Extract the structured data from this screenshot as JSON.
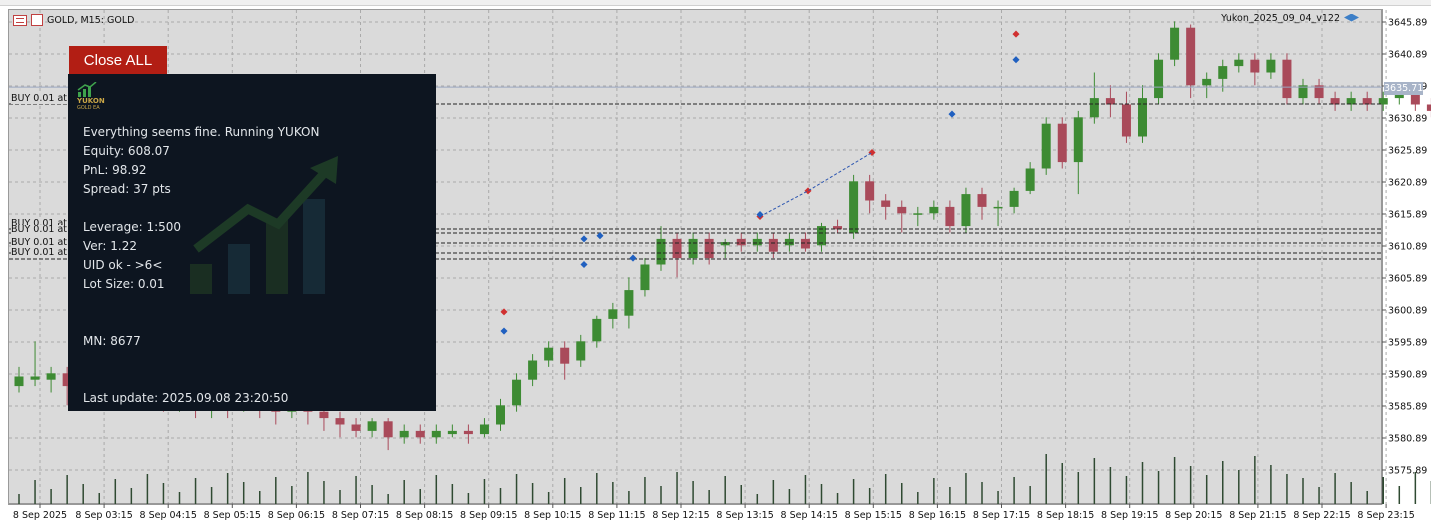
{
  "chart": {
    "symbol_title": "GOLD, M15:  GOLD",
    "ea_name": "Yukon_2025_09_04_v122",
    "current_price_tag": "3635.71",
    "y_axis_ticks": [
      "3645.89",
      "3640.89",
      "3635.89",
      "3630.89",
      "3625.89",
      "3620.89",
      "3615.89",
      "3610.89",
      "3605.89",
      "3600.89",
      "3595.89",
      "3590.89",
      "3585.89",
      "3580.89",
      "3575.89"
    ],
    "x_axis_ticks": [
      "8 Sep 2025",
      "8 Sep 03:15",
      "8 Sep 04:15",
      "8 Sep 05:15",
      "8 Sep 06:15",
      "8 Sep 07:15",
      "8 Sep 08:15",
      "8 Sep 09:15",
      "8 Sep 10:15",
      "8 Sep 11:15",
      "8 Sep 12:15",
      "8 Sep 13:15",
      "8 Sep 14:15",
      "8 Sep 15:15",
      "8 Sep 16:15",
      "8 Sep 17:15",
      "8 Sep 18:15",
      "8 Sep 19:15",
      "8 Sep 20:15",
      "8 Sep 21:15",
      "8 Sep 22:15",
      "8 Sep 23:15"
    ],
    "position_labels": [
      "BUY 0.01 at 3",
      "BUY 0.01 at 3",
      "BUY 0.01 at 3",
      "BUY 0.01 at 3",
      "BUY 0.01 at 3",
      "BUY 0.01 at 3"
    ],
    "colors": {
      "bull": "#3d8b33",
      "bear": "#a94a5a",
      "volume": "#2f4a32",
      "grid": "#aaaaaa",
      "background": "#dadada"
    }
  },
  "buttons": {
    "close_all": "Close ALL"
  },
  "panel": {
    "logo_line1": "YUKON",
    "logo_line2": "GOLD EA",
    "status": "Everything seems fine. Running YUKON",
    "equity": "Equity: 608.07",
    "pnl": "PnL: 98.92",
    "spread": "Spread: 37 pts",
    "leverage": "Leverage: 1:500",
    "version": "Ver: 1.22",
    "uid": "UID ok - >6<",
    "lot_size": "Lot Size: 0.01",
    "mn": "MN: 8677",
    "last_update": "Last update: 2025.09.08 23:20:50"
  }
}
